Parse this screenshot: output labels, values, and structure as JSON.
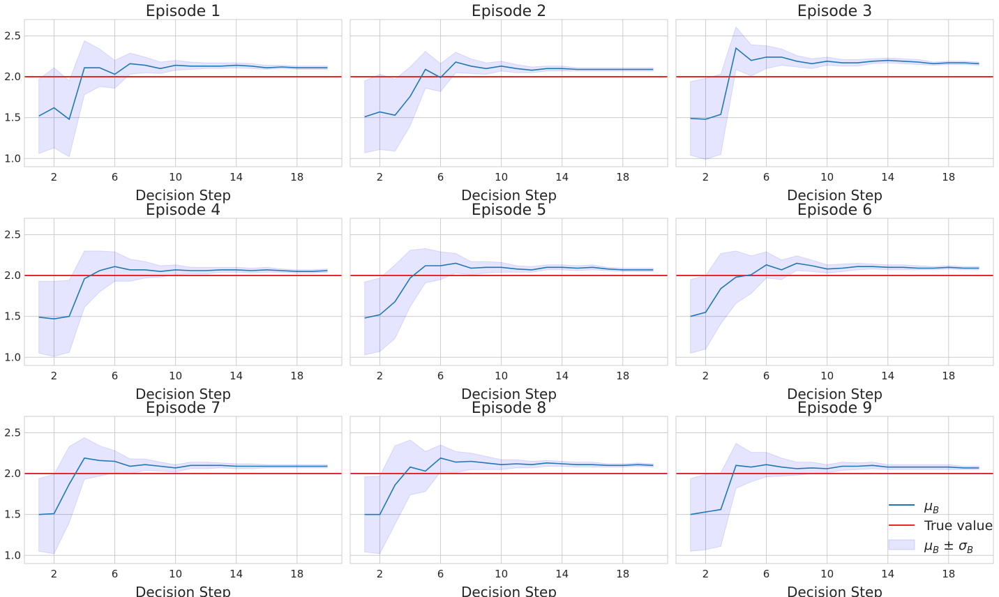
{
  "chart_data": {
    "type": "line",
    "layout": "3x3 grid of subplots, shared y axis per row",
    "xlabel": "Decision Step",
    "x": [
      1,
      2,
      3,
      4,
      5,
      6,
      7,
      8,
      9,
      10,
      11,
      12,
      13,
      14,
      15,
      16,
      17,
      18,
      19,
      20
    ],
    "xticks": [
      2,
      6,
      10,
      14,
      18
    ],
    "yticks": [
      1.0,
      1.5,
      2.0,
      2.5
    ],
    "ytick_labels": [
      "1.0",
      "1.5",
      "2.0",
      "2.5"
    ],
    "xlim": [
      0.05,
      20.95
    ],
    "ylim": [
      0.9,
      2.7
    ],
    "grid": true,
    "true_value": 2.0,
    "colors": {
      "mean": "#1f77b4",
      "true_value": "#e8272b",
      "band": "#0000ff"
    },
    "legend": {
      "placement": "lower-right of Episode 9",
      "entries": [
        {
          "mu": "μ",
          "sub": "B",
          "kind": "line",
          "color": "#1f77b4"
        },
        {
          "label": "True value",
          "kind": "line",
          "color": "#e8272b"
        },
        {
          "mu": "μ",
          "sub": "B",
          "pm": " ± ",
          "sigma": "σ",
          "sub2": "B",
          "kind": "band",
          "color": "#0000ff"
        }
      ]
    },
    "panels": [
      {
        "title": "Episode 1",
        "mean": [
          1.52,
          1.62,
          1.48,
          2.11,
          2.11,
          2.03,
          2.16,
          2.14,
          2.1,
          2.14,
          2.13,
          2.13,
          2.13,
          2.14,
          2.13,
          2.11,
          2.12,
          2.11,
          2.11,
          2.11
        ],
        "lower": [
          1.06,
          1.13,
          1.02,
          1.78,
          1.88,
          1.86,
          2.03,
          2.05,
          2.04,
          2.08,
          2.09,
          2.1,
          2.1,
          2.11,
          2.1,
          2.09,
          2.1,
          2.09,
          2.09,
          2.09
        ],
        "upper": [
          1.97,
          2.11,
          1.95,
          2.44,
          2.34,
          2.2,
          2.29,
          2.24,
          2.18,
          2.2,
          2.18,
          2.17,
          2.17,
          2.17,
          2.16,
          2.14,
          2.14,
          2.13,
          2.13,
          2.13
        ]
      },
      {
        "title": "Episode 2",
        "mean": [
          1.51,
          1.57,
          1.53,
          1.76,
          2.09,
          1.99,
          2.18,
          2.13,
          2.1,
          2.13,
          2.1,
          2.08,
          2.1,
          2.1,
          2.09,
          2.09,
          2.09,
          2.09,
          2.09,
          2.09
        ],
        "lower": [
          1.07,
          1.11,
          1.09,
          1.4,
          1.86,
          1.82,
          2.05,
          2.04,
          2.03,
          2.07,
          2.05,
          2.05,
          2.07,
          2.07,
          2.07,
          2.07,
          2.07,
          2.07,
          2.07,
          2.07
        ],
        "upper": [
          1.95,
          2.03,
          1.97,
          2.12,
          2.31,
          2.16,
          2.3,
          2.22,
          2.17,
          2.19,
          2.15,
          2.12,
          2.13,
          2.13,
          2.11,
          2.11,
          2.11,
          2.11,
          2.11,
          2.11
        ]
      },
      {
        "title": "Episode 3",
        "mean": [
          1.49,
          1.48,
          1.54,
          2.35,
          2.2,
          2.24,
          2.24,
          2.19,
          2.16,
          2.19,
          2.17,
          2.17,
          2.19,
          2.2,
          2.19,
          2.18,
          2.16,
          2.17,
          2.17,
          2.16
        ],
        "lower": [
          1.04,
          0.99,
          1.05,
          2.09,
          2.01,
          2.1,
          2.14,
          2.12,
          2.1,
          2.14,
          2.13,
          2.13,
          2.16,
          2.17,
          2.16,
          2.15,
          2.14,
          2.15,
          2.15,
          2.14
        ],
        "upper": [
          1.94,
          1.98,
          2.03,
          2.61,
          2.39,
          2.38,
          2.34,
          2.26,
          2.22,
          2.24,
          2.21,
          2.21,
          2.22,
          2.23,
          2.22,
          2.21,
          2.18,
          2.19,
          2.19,
          2.18
        ]
      },
      {
        "title": "Episode 4",
        "mean": [
          1.49,
          1.47,
          1.5,
          1.96,
          2.06,
          2.11,
          2.07,
          2.07,
          2.05,
          2.07,
          2.06,
          2.06,
          2.07,
          2.07,
          2.06,
          2.07,
          2.06,
          2.05,
          2.05,
          2.06
        ],
        "lower": [
          1.05,
          1.01,
          1.06,
          1.61,
          1.8,
          1.93,
          1.93,
          1.97,
          1.98,
          2.01,
          2.02,
          2.02,
          2.04,
          2.04,
          2.03,
          2.04,
          2.04,
          2.03,
          2.03,
          2.04
        ],
        "upper": [
          1.93,
          1.93,
          1.94,
          2.3,
          2.3,
          2.29,
          2.2,
          2.17,
          2.12,
          2.13,
          2.1,
          2.1,
          2.1,
          2.1,
          2.09,
          2.1,
          2.08,
          2.07,
          2.07,
          2.08
        ]
      },
      {
        "title": "Episode 5",
        "mean": [
          1.48,
          1.52,
          1.68,
          1.97,
          2.12,
          2.12,
          2.15,
          2.09,
          2.1,
          2.1,
          2.08,
          2.07,
          2.1,
          2.1,
          2.09,
          2.1,
          2.08,
          2.07,
          2.07,
          2.07
        ],
        "lower": [
          1.03,
          1.07,
          1.23,
          1.62,
          1.91,
          1.95,
          2.03,
          2.01,
          2.03,
          2.04,
          2.04,
          2.04,
          2.07,
          2.07,
          2.06,
          2.07,
          2.06,
          2.05,
          2.05,
          2.05
        ],
        "upper": [
          1.92,
          1.97,
          2.13,
          2.31,
          2.33,
          2.29,
          2.27,
          2.17,
          2.17,
          2.16,
          2.12,
          2.11,
          2.13,
          2.13,
          2.12,
          2.13,
          2.1,
          2.09,
          2.09,
          2.09
        ]
      },
      {
        "title": "Episode 6",
        "mean": [
          1.5,
          1.55,
          1.84,
          1.98,
          2.01,
          2.13,
          2.07,
          2.15,
          2.12,
          2.08,
          2.09,
          2.11,
          2.11,
          2.1,
          2.1,
          2.09,
          2.09,
          2.1,
          2.09,
          2.09
        ],
        "lower": [
          1.05,
          1.1,
          1.41,
          1.66,
          1.78,
          1.97,
          1.95,
          2.06,
          2.05,
          2.03,
          2.05,
          2.07,
          2.08,
          2.07,
          2.07,
          2.07,
          2.07,
          2.08,
          2.07,
          2.07
        ],
        "upper": [
          1.95,
          2.0,
          2.27,
          2.3,
          2.24,
          2.29,
          2.19,
          2.24,
          2.19,
          2.13,
          2.14,
          2.15,
          2.14,
          2.13,
          2.13,
          2.12,
          2.11,
          2.12,
          2.11,
          2.11
        ]
      },
      {
        "title": "Episode 7",
        "mean": [
          1.5,
          1.51,
          1.87,
          2.19,
          2.16,
          2.15,
          2.09,
          2.11,
          2.09,
          2.07,
          2.1,
          2.1,
          2.1,
          2.09,
          2.09,
          2.09,
          2.09,
          2.09,
          2.09,
          2.09
        ],
        "lower": [
          1.05,
          1.02,
          1.4,
          1.93,
          1.97,
          2.01,
          2.0,
          2.04,
          2.03,
          2.02,
          2.06,
          2.06,
          2.07,
          2.06,
          2.06,
          2.07,
          2.07,
          2.07,
          2.07,
          2.07
        ],
        "upper": [
          1.94,
          1.99,
          2.33,
          2.44,
          2.34,
          2.28,
          2.18,
          2.18,
          2.14,
          2.11,
          2.14,
          2.14,
          2.13,
          2.12,
          2.12,
          2.11,
          2.11,
          2.11,
          2.11,
          2.11
        ]
      },
      {
        "title": "Episode 8",
        "mean": [
          1.5,
          1.5,
          1.86,
          2.08,
          2.03,
          2.19,
          2.14,
          2.15,
          2.13,
          2.11,
          2.12,
          2.11,
          2.13,
          2.12,
          2.11,
          2.11,
          2.1,
          2.1,
          2.11,
          2.1
        ],
        "lower": [
          1.04,
          1.02,
          1.38,
          1.74,
          1.78,
          2.02,
          2.01,
          2.05,
          2.05,
          2.05,
          2.07,
          2.07,
          2.09,
          2.09,
          2.08,
          2.08,
          2.08,
          2.08,
          2.09,
          2.08
        ],
        "upper": [
          1.96,
          1.97,
          2.34,
          2.41,
          2.27,
          2.35,
          2.27,
          2.25,
          2.21,
          2.17,
          2.17,
          2.15,
          2.16,
          2.15,
          2.14,
          2.14,
          2.12,
          2.12,
          2.13,
          2.12
        ]
      },
      {
        "title": "Episode 9",
        "mean": [
          1.5,
          1.53,
          1.56,
          2.1,
          2.08,
          2.11,
          2.08,
          2.06,
          2.07,
          2.06,
          2.09,
          2.09,
          2.1,
          2.08,
          2.08,
          2.08,
          2.08,
          2.08,
          2.07,
          2.07
        ],
        "lower": [
          1.05,
          1.07,
          1.11,
          1.82,
          1.9,
          1.96,
          1.97,
          1.98,
          2.0,
          2.01,
          2.04,
          2.05,
          2.06,
          2.05,
          2.05,
          2.05,
          2.05,
          2.05,
          2.05,
          2.05
        ],
        "upper": [
          1.94,
          1.99,
          2.01,
          2.37,
          2.26,
          2.26,
          2.19,
          2.14,
          2.14,
          2.11,
          2.14,
          2.13,
          2.14,
          2.11,
          2.11,
          2.11,
          2.11,
          2.11,
          2.09,
          2.09
        ]
      }
    ]
  }
}
